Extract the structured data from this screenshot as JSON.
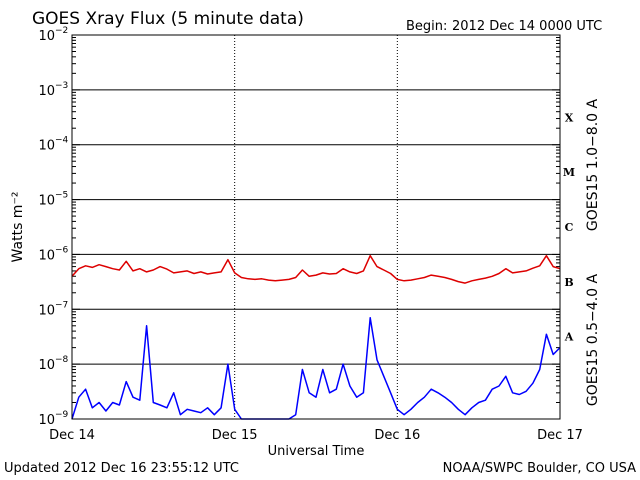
{
  "header": {
    "title": "GOES Xray Flux (5 minute data)",
    "begin_label": "Begin:",
    "begin_value": "2012 Dec 14 0000 UTC"
  },
  "footer": {
    "updated": "Updated 2012 Dec 16 23:55:12 UTC",
    "credit": "NOAA/SWPC Boulder, CO USA"
  },
  "colors": {
    "long": "#dd0000",
    "short": "#0000ff",
    "grid": "#000000"
  },
  "chart_data": {
    "type": "line",
    "title": "GOES Xray Flux (5 minute data)",
    "xlabel": "Universal Time",
    "ylabel": "Watts m⁻²",
    "yscale": "log",
    "ylim": [
      1e-09,
      0.01
    ],
    "x_unit": "hours since 2012 Dec 14 0000 UTC",
    "xlim": [
      0,
      72
    ],
    "x_ticks": [
      {
        "x": 0,
        "label": "Dec 14"
      },
      {
        "x": 24,
        "label": "Dec 15"
      },
      {
        "x": 48,
        "label": "Dec 16"
      },
      {
        "x": 72,
        "label": "Dec 17"
      }
    ],
    "y_ticks": [
      {
        "exp": -2,
        "base": "10",
        "sup": "−2"
      },
      {
        "exp": -3,
        "base": "10",
        "sup": "−3"
      },
      {
        "exp": -4,
        "base": "10",
        "sup": "−4"
      },
      {
        "exp": -5,
        "base": "10",
        "sup": "−5"
      },
      {
        "exp": -6,
        "base": "10",
        "sup": "−6"
      },
      {
        "exp": -7,
        "base": "10",
        "sup": "−7"
      },
      {
        "exp": -8,
        "base": "10",
        "sup": "−8"
      },
      {
        "exp": -9,
        "base": "10",
        "sup": "−9"
      }
    ],
    "flare_classes": [
      {
        "label": "X",
        "exp": -3.5
      },
      {
        "label": "M",
        "exp": -4.5
      },
      {
        "label": "C",
        "exp": -5.5
      },
      {
        "label": "B",
        "exp": -6.5
      },
      {
        "label": "A",
        "exp": -7.5
      }
    ],
    "series": [
      {
        "name": "GOES15 1.0−8.0 A",
        "color": "#dd0000",
        "x": [
          0,
          1,
          2,
          3,
          4,
          5,
          6,
          7,
          8,
          9,
          10,
          11,
          12,
          13,
          14,
          15,
          16,
          17,
          18,
          19,
          20,
          21,
          22,
          23,
          24,
          25,
          26,
          27,
          28,
          29,
          30,
          31,
          32,
          33,
          34,
          35,
          36,
          37,
          38,
          39,
          40,
          41,
          42,
          43,
          44,
          45,
          46,
          47,
          48,
          49,
          50,
          51,
          52,
          53,
          54,
          55,
          56,
          57,
          58,
          59,
          60,
          61,
          62,
          63,
          64,
          65,
          66,
          67,
          68,
          69,
          70,
          71,
          72
        ],
        "values": [
          4e-07,
          5.5e-07,
          6.2e-07,
          5.8e-07,
          6.5e-07,
          6e-07,
          5.5e-07,
          5.2e-07,
          7.5e-07,
          5e-07,
          5.5e-07,
          4.8e-07,
          5.2e-07,
          6e-07,
          5.4e-07,
          4.6e-07,
          4.8e-07,
          5e-07,
          4.5e-07,
          4.8e-07,
          4.4e-07,
          4.6e-07,
          4.8e-07,
          8e-07,
          4.6e-07,
          3.8e-07,
          3.6e-07,
          3.5e-07,
          3.6e-07,
          3.4e-07,
          3.3e-07,
          3.4e-07,
          3.5e-07,
          3.8e-07,
          5.2e-07,
          4e-07,
          4.2e-07,
          4.6e-07,
          4.4e-07,
          4.5e-07,
          5.5e-07,
          4.8e-07,
          4.5e-07,
          5e-07,
          9.5e-07,
          6e-07,
          5.2e-07,
          4.5e-07,
          3.5e-07,
          3.3e-07,
          3.4e-07,
          3.6e-07,
          3.8e-07,
          4.2e-07,
          4e-07,
          3.8e-07,
          3.5e-07,
          3.2e-07,
          3e-07,
          3.3e-07,
          3.5e-07,
          3.7e-07,
          4e-07,
          4.5e-07,
          5.5e-07,
          4.6e-07,
          4.8e-07,
          5e-07,
          5.6e-07,
          6.2e-07,
          9.5e-07,
          6e-07,
          5.5e-07
        ]
      },
      {
        "name": "GOES15 0.5−4.0 A",
        "color": "#0000ff",
        "x": [
          0,
          1,
          2,
          3,
          4,
          5,
          6,
          7,
          8,
          9,
          10,
          11,
          12,
          13,
          14,
          15,
          16,
          17,
          18,
          19,
          20,
          21,
          22,
          23,
          24,
          25,
          26,
          27,
          28,
          29,
          30,
          31,
          32,
          33,
          34,
          35,
          36,
          37,
          38,
          39,
          40,
          41,
          42,
          43,
          44,
          45,
          46,
          47,
          48,
          49,
          50,
          51,
          52,
          53,
          54,
          55,
          56,
          57,
          58,
          59,
          60,
          61,
          62,
          63,
          64,
          65,
          66,
          67,
          68,
          69,
          70,
          71,
          72
        ],
        "values": [
          1e-09,
          2.5e-09,
          3.5e-09,
          1.6e-09,
          2e-09,
          1.4e-09,
          2e-09,
          1.8e-09,
          4.8e-09,
          2.5e-09,
          2.2e-09,
          5e-08,
          2e-09,
          1.8e-09,
          1.6e-09,
          3e-09,
          1.2e-09,
          1.5e-09,
          1.4e-09,
          1.3e-09,
          1.6e-09,
          1.2e-09,
          1.6e-09,
          1e-08,
          1.5e-09,
          1e-09,
          1e-09,
          1e-09,
          1e-09,
          1e-09,
          1e-09,
          1e-09,
          1e-09,
          1.2e-09,
          8e-09,
          3e-09,
          2.5e-09,
          8e-09,
          3e-09,
          3.5e-09,
          1e-08,
          4e-09,
          2.5e-09,
          3e-09,
          7e-08,
          1.2e-08,
          6e-09,
          3e-09,
          1.5e-09,
          1.2e-09,
          1.5e-09,
          2e-09,
          2.5e-09,
          3.5e-09,
          3e-09,
          2.5e-09,
          2e-09,
          1.5e-09,
          1.2e-09,
          1.6e-09,
          2e-09,
          2.2e-09,
          3.5e-09,
          4e-09,
          6e-09,
          3e-09,
          2.8e-09,
          3.2e-09,
          4.5e-09,
          8e-09,
          3.5e-08,
          1.5e-08,
          2e-08
        ]
      }
    ]
  }
}
